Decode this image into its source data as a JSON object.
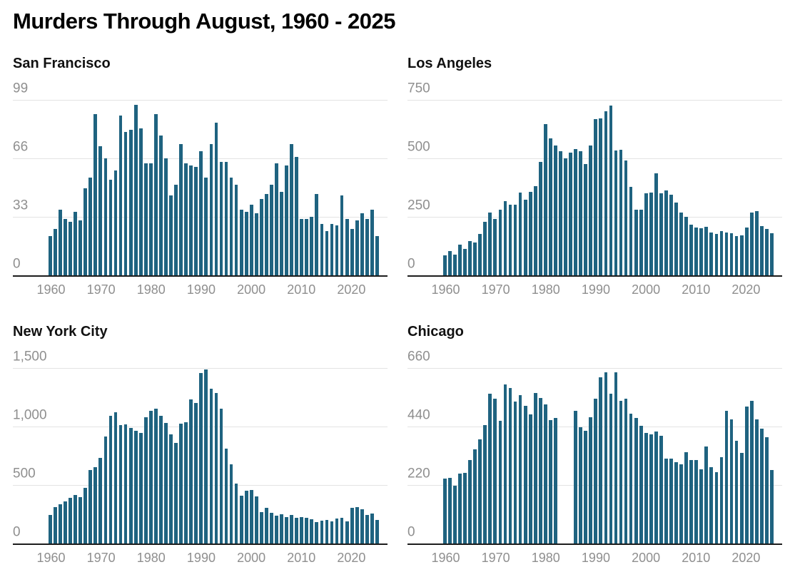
{
  "page_title": "Murders Through August, 1960 - 2025",
  "colors": {
    "bar": "#1f6380",
    "axis_label": "#8f8f8f",
    "gridline": "#e3e3e3",
    "baseline": "#1c1c1c",
    "title": "#000000"
  },
  "chart_data": [
    {
      "type": "bar",
      "title": "San Francisco",
      "x_start": 1960,
      "x_end": 2025,
      "x_tick_years": [
        1960,
        1970,
        1980,
        1990,
        2000,
        2010,
        2020
      ],
      "y_ticks": [
        "99",
        "66",
        "33",
        "0"
      ],
      "ylim": [
        0,
        99
      ],
      "grid": true,
      "values": [
        22,
        26,
        37,
        32,
        30,
        36,
        31,
        49,
        55,
        91,
        73,
        66,
        54,
        59,
        90,
        81,
        82,
        96,
        83,
        63,
        63,
        91,
        79,
        66,
        45,
        51,
        74,
        63,
        62,
        61,
        70,
        55,
        74,
        86,
        64,
        64,
        55,
        51,
        37,
        36,
        40,
        35,
        43,
        46,
        51,
        63,
        47,
        62,
        74,
        67,
        32,
        32,
        33,
        46,
        29,
        25,
        29,
        28,
        45,
        32,
        26,
        31,
        35,
        32,
        37,
        22
      ]
    },
    {
      "type": "bar",
      "title": "Los Angeles",
      "x_start": 1960,
      "x_end": 2025,
      "x_tick_years": [
        1960,
        1970,
        1980,
        1990,
        2000,
        2010,
        2020
      ],
      "y_ticks": [
        "750",
        "500",
        "250",
        "0"
      ],
      "ylim": [
        0,
        750
      ],
      "grid": true,
      "values": [
        85,
        104,
        87,
        132,
        112,
        147,
        140,
        177,
        230,
        269,
        240,
        280,
        317,
        302,
        302,
        354,
        324,
        357,
        382,
        485,
        645,
        584,
        554,
        532,
        500,
        524,
        539,
        530,
        477,
        554,
        667,
        672,
        700,
        727,
        534,
        537,
        492,
        379,
        280,
        280,
        350,
        354,
        437,
        350,
        362,
        344,
        312,
        267,
        250,
        217,
        204,
        200,
        207,
        184,
        177,
        190,
        184,
        180,
        167,
        172,
        204,
        267,
        274,
        210,
        197,
        180
      ]
    },
    {
      "type": "bar",
      "title": "New York City",
      "x_start": 1960,
      "x_end": 2025,
      "x_tick_years": [
        1960,
        1970,
        1980,
        1990,
        2000,
        2010,
        2020
      ],
      "y_ticks": [
        "1,500",
        "1,000",
        "500",
        "0"
      ],
      "ylim": [
        0,
        1500
      ],
      "grid": true,
      "values": [
        243,
        314,
        336,
        360,
        391,
        415,
        397,
        476,
        630,
        650,
        729,
        913,
        1089,
        1123,
        1014,
        1018,
        988,
        963,
        943,
        1079,
        1136,
        1150,
        1093,
        1032,
        931,
        862,
        1024,
        1038,
        1231,
        1204,
        1457,
        1488,
        1325,
        1285,
        1150,
        813,
        678,
        515,
        408,
        451,
        457,
        405,
        266,
        306,
        262,
        236,
        252,
        226,
        242,
        222,
        226,
        222,
        210,
        185,
        196,
        202,
        190,
        216,
        222,
        190,
        302,
        310,
        290,
        242,
        256,
        202
      ]
    },
    {
      "type": "bar",
      "title": "Chicago",
      "x_start": 1960,
      "x_end": 2025,
      "x_tick_years": [
        1960,
        1970,
        1980,
        1990,
        2000,
        2010,
        2020
      ],
      "y_ticks": [
        "660",
        "440",
        "220",
        "0"
      ],
      "ylim": [
        0,
        660
      ],
      "grid": true,
      "missing_years_note": "no bars for 1983-1985",
      "values": [
        244,
        246,
        217,
        264,
        266,
        315,
        354,
        392,
        445,
        563,
        544,
        462,
        597,
        585,
        535,
        559,
        519,
        486,
        565,
        548,
        524,
        465,
        471,
        null,
        null,
        null,
        500,
        438,
        423,
        474,
        545,
        625,
        643,
        563,
        643,
        537,
        546,
        489,
        471,
        442,
        415,
        411,
        421,
        404,
        318,
        320,
        306,
        297,
        344,
        313,
        315,
        280,
        365,
        288,
        269,
        324,
        498,
        466,
        386,
        342,
        515,
        537,
        466,
        433,
        400,
        276
      ]
    }
  ]
}
